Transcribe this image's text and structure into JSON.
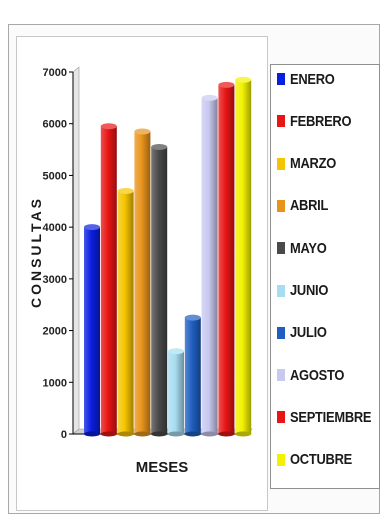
{
  "chart_data": {
    "type": "bar",
    "title": "",
    "xlabel": "MESES",
    "ylabel": "CONSULTAS",
    "ylim": [
      0,
      7000
    ],
    "yticks": [
      0,
      1000,
      2000,
      3000,
      4000,
      5000,
      6000,
      7000
    ],
    "grid": false,
    "legend_position": "right",
    "categories": [
      "ENERO",
      "FEBRERO",
      "MARZO",
      "ABRIL",
      "MAYO",
      "JUNIO",
      "JULIO",
      "AGOSTO",
      "SEPTIEMBRE",
      "OCTUBRE"
    ],
    "values": [
      4000,
      5950,
      4700,
      5850,
      5550,
      1600,
      2250,
      6500,
      6750,
      6850
    ],
    "colors": [
      "#0a1ee0",
      "#e81515",
      "#f5c400",
      "#e8941c",
      "#4a4a4a",
      "#a8dcf0",
      "#1f5fc0",
      "#c8c8f0",
      "#e81515",
      "#f2f200"
    ]
  }
}
